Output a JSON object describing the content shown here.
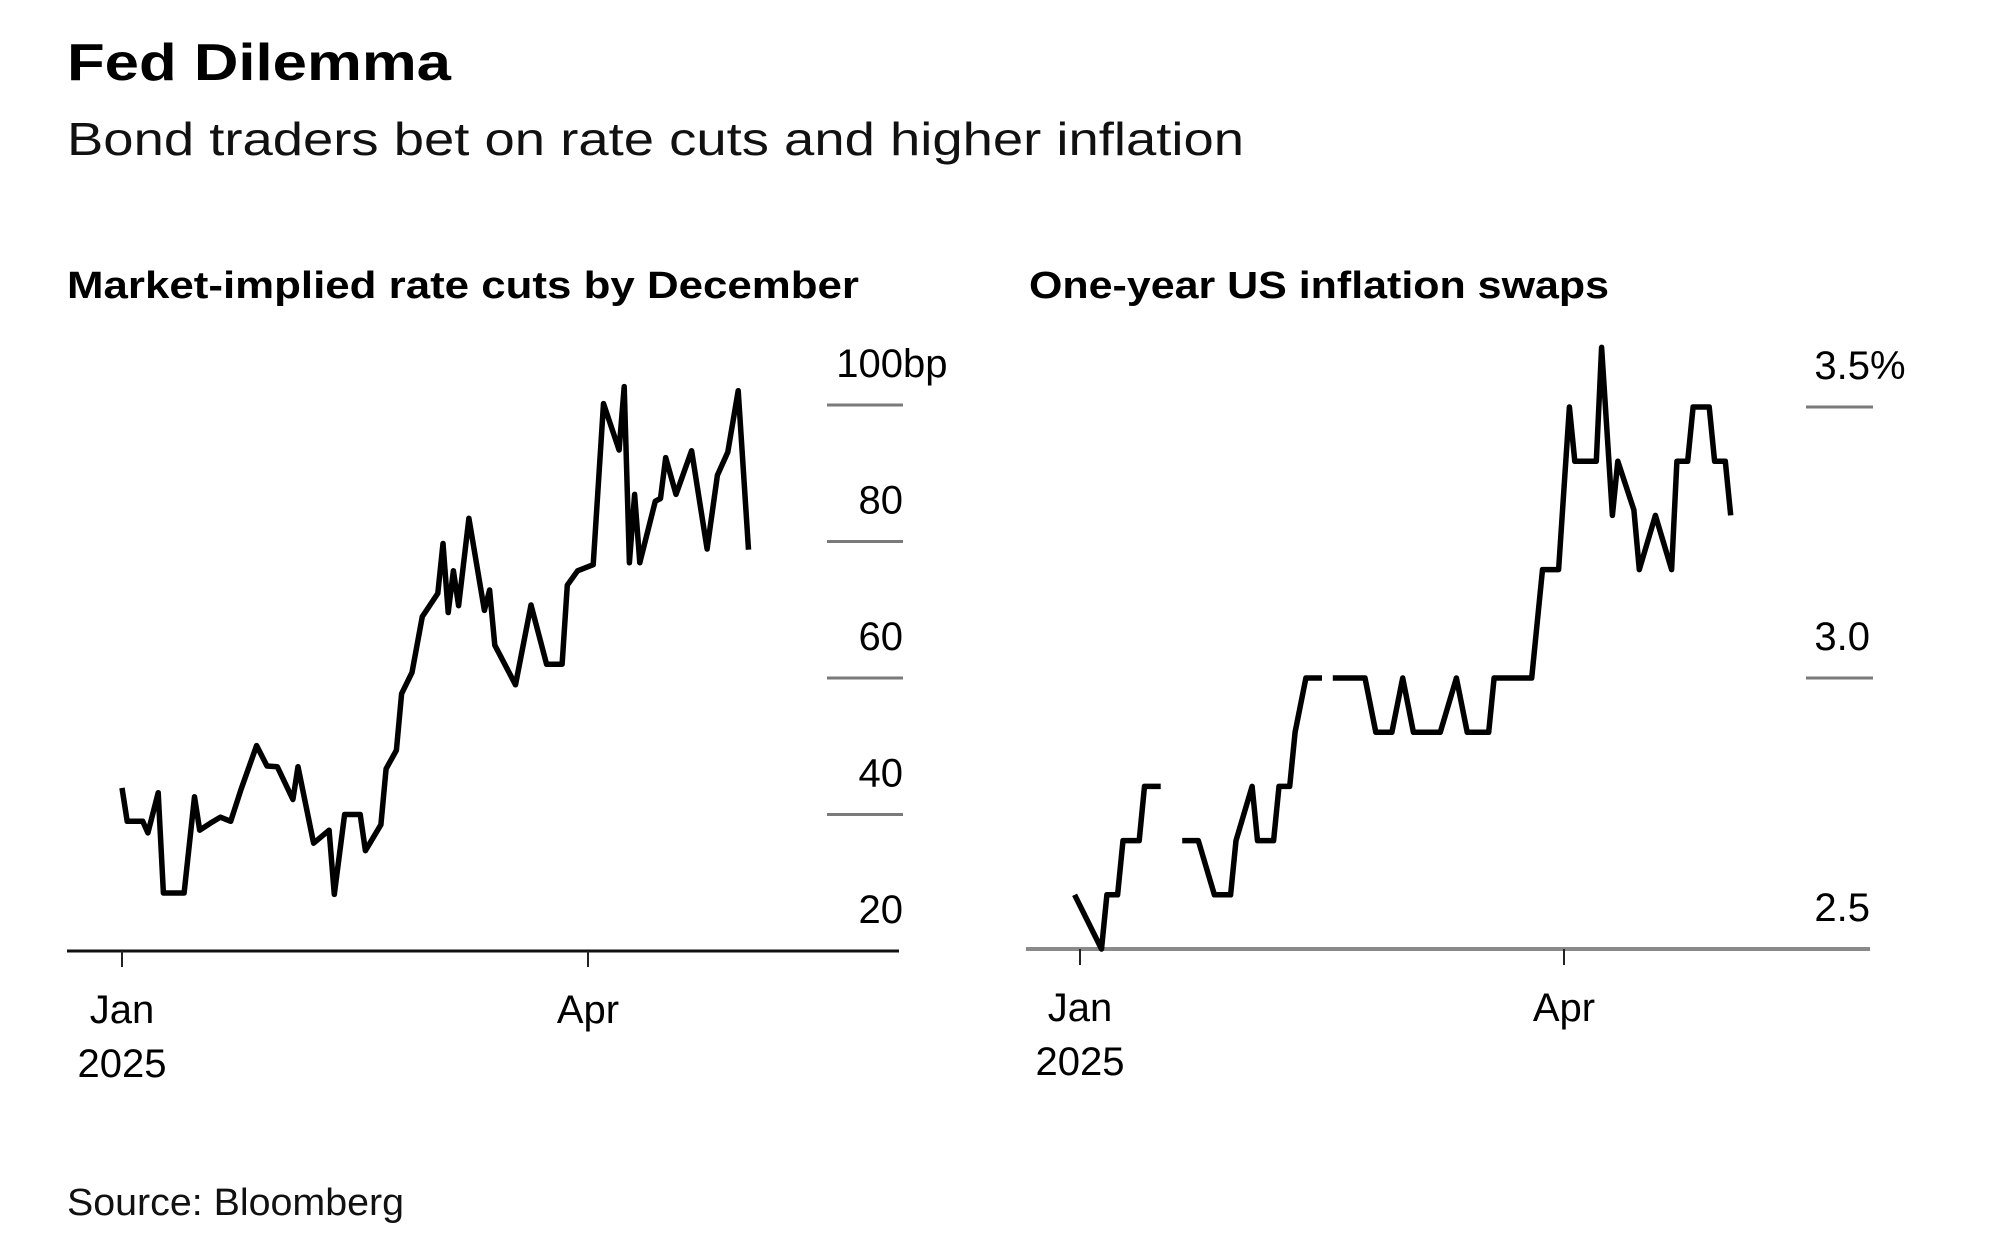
{
  "header": {
    "title": "Fed Dilemma",
    "subtitle": "Bond traders bet on rate cuts and higher inflation"
  },
  "footer": {
    "source": "Source: Bloomberg"
  },
  "colors": {
    "line": "#000000",
    "gridline": "#7a7a7a",
    "axis_left": "#111111",
    "axis_right": "#8a8a8a"
  },
  "chart_data": [
    {
      "type": "line",
      "title": "Market-implied rate cuts by December",
      "y_unit": "bp",
      "ylim": [
        20,
        100
      ],
      "y_ticks": [
        20,
        40,
        60,
        80,
        100
      ],
      "y_tick_labels": [
        "20",
        "40",
        "60",
        "80",
        "100"
      ],
      "y_axis_side": "right",
      "grid": true,
      "x_ticks": [
        {
          "date": "2025-01-01",
          "label": "Jan",
          "sublabel": "2025"
        },
        {
          "date": "2025-04-01",
          "label": "Apr",
          "sublabel": ""
        }
      ],
      "points": [
        [
          "2025-01-01",
          43.9
        ],
        [
          "2025-01-02",
          39.0
        ],
        [
          "2025-01-05",
          39.0
        ],
        [
          "2025-01-06",
          37.3
        ],
        [
          "2025-01-08",
          43.2
        ],
        [
          "2025-01-09",
          28.5
        ],
        [
          "2025-01-13",
          28.5
        ],
        [
          "2025-01-15",
          42.6
        ],
        [
          "2025-01-16",
          37.7
        ],
        [
          "2025-01-18",
          38.7
        ],
        [
          "2025-01-20",
          39.6
        ],
        [
          "2025-01-22",
          39.0
        ],
        [
          "2025-01-24",
          43.7
        ],
        [
          "2025-01-27",
          50.1
        ],
        [
          "2025-01-29",
          47.1
        ],
        [
          "2025-01-31",
          47.0
        ],
        [
          "2025-02-03",
          42.2
        ],
        [
          "2025-02-04",
          47.0
        ],
        [
          "2025-02-07",
          35.8
        ],
        [
          "2025-02-10",
          37.7
        ],
        [
          "2025-02-11",
          28.3
        ],
        [
          "2025-02-13",
          40.0
        ],
        [
          "2025-02-16",
          40.0
        ],
        [
          "2025-02-17",
          34.7
        ],
        [
          "2025-02-20",
          38.5
        ],
        [
          "2025-02-21",
          46.7
        ],
        [
          "2025-02-23",
          49.4
        ],
        [
          "2025-02-24",
          57.7
        ],
        [
          "2025-02-26",
          60.8
        ],
        [
          "2025-02-28",
          69.0
        ],
        [
          "2025-03-03",
          72.4
        ],
        [
          "2025-03-04",
          79.7
        ],
        [
          "2025-03-05",
          69.6
        ],
        [
          "2025-03-06",
          75.7
        ],
        [
          "2025-03-07",
          70.6
        ],
        [
          "2025-03-09",
          83.4
        ],
        [
          "2025-03-12",
          69.9
        ],
        [
          "2025-03-13",
          72.9
        ],
        [
          "2025-03-14",
          64.8
        ],
        [
          "2025-03-18",
          59.0
        ],
        [
          "2025-03-21",
          70.7
        ],
        [
          "2025-03-24",
          62.0
        ],
        [
          "2025-03-27",
          62.0
        ],
        [
          "2025-03-28",
          73.6
        ],
        [
          "2025-03-30",
          75.7
        ],
        [
          "2025-04-02",
          76.6
        ],
        [
          "2025-04-04",
          100.2
        ],
        [
          "2025-04-07",
          93.4
        ],
        [
          "2025-04-08",
          102.7
        ],
        [
          "2025-04-09",
          76.9
        ],
        [
          "2025-04-10",
          86.9
        ],
        [
          "2025-04-11",
          76.9
        ],
        [
          "2025-04-14",
          85.9
        ],
        [
          "2025-04-15",
          86.3
        ],
        [
          "2025-04-16",
          92.3
        ],
        [
          "2025-04-18",
          86.9
        ],
        [
          "2025-04-21",
          93.3
        ],
        [
          "2025-04-24",
          78.9
        ],
        [
          "2025-04-26",
          89.7
        ],
        [
          "2025-04-28",
          93.1
        ],
        [
          "2025-04-30",
          102.1
        ],
        [
          "2025-05-02",
          78.8
        ]
      ]
    },
    {
      "type": "line",
      "title": "One-year US inflation swaps",
      "y_unit": "%",
      "ylim": [
        2.5,
        3.5
      ],
      "y_ticks": [
        2.5,
        3.0,
        3.5
      ],
      "y_tick_labels": [
        "2.5",
        "3.0",
        "3.5"
      ],
      "y_axis_side": "right",
      "grid": true,
      "x_ticks": [
        {
          "date": "2025-01-01",
          "label": "Jan",
          "sublabel": "2025"
        },
        {
          "date": "2025-04-01",
          "label": "Apr",
          "sublabel": ""
        }
      ],
      "points": [
        [
          "2024-12-31",
          2.6
        ],
        [
          "2025-01-05",
          2.5
        ],
        [
          "2025-01-06",
          2.6
        ],
        [
          "2025-01-08",
          2.6
        ],
        [
          "2025-01-09",
          2.7
        ],
        [
          "2025-01-12",
          2.7
        ],
        [
          "2025-01-13",
          2.8
        ],
        [
          "2025-01-16",
          2.8
        ],
        [
          "2025-01-18",
          null
        ],
        [
          "2025-01-20",
          2.7
        ],
        [
          "2025-01-23",
          2.7
        ],
        [
          "2025-01-26",
          2.6
        ],
        [
          "2025-01-29",
          2.6
        ],
        [
          "2025-01-30",
          2.7
        ],
        [
          "2025-02-02",
          2.8
        ],
        [
          "2025-02-03",
          2.7
        ],
        [
          "2025-02-06",
          2.7
        ],
        [
          "2025-02-07",
          2.8
        ],
        [
          "2025-02-09",
          2.8
        ],
        [
          "2025-02-10",
          2.9
        ],
        [
          "2025-02-12",
          3.0
        ],
        [
          "2025-02-15",
          3.0
        ],
        [
          "2025-02-16",
          null
        ],
        [
          "2025-02-17",
          3.0
        ],
        [
          "2025-02-23",
          3.0
        ],
        [
          "2025-02-25",
          2.9
        ],
        [
          "2025-02-28",
          2.9
        ],
        [
          "2025-03-02",
          3.0
        ],
        [
          "2025-03-04",
          2.9
        ],
        [
          "2025-03-09",
          2.9
        ],
        [
          "2025-03-12",
          3.0
        ],
        [
          "2025-03-14",
          2.9
        ],
        [
          "2025-03-18",
          2.9
        ],
        [
          "2025-03-19",
          3.0
        ],
        [
          "2025-03-26",
          3.0
        ],
        [
          "2025-03-28",
          3.2
        ],
        [
          "2025-03-31",
          3.2
        ],
        [
          "2025-04-02",
          3.5
        ],
        [
          "2025-04-03",
          3.4
        ],
        [
          "2025-04-07",
          3.4
        ],
        [
          "2025-04-08",
          3.61
        ],
        [
          "2025-04-10",
          3.3
        ],
        [
          "2025-04-11",
          3.4
        ],
        [
          "2025-04-14",
          3.31
        ],
        [
          "2025-04-15",
          3.2
        ],
        [
          "2025-04-18",
          3.3
        ],
        [
          "2025-04-21",
          3.2
        ],
        [
          "2025-04-22",
          3.4
        ],
        [
          "2025-04-24",
          3.4
        ],
        [
          "2025-04-25",
          3.5
        ],
        [
          "2025-04-28",
          3.5
        ],
        [
          "2025-04-29",
          3.4
        ],
        [
          "2025-05-01",
          3.4
        ],
        [
          "2025-05-02",
          3.3
        ]
      ]
    }
  ]
}
